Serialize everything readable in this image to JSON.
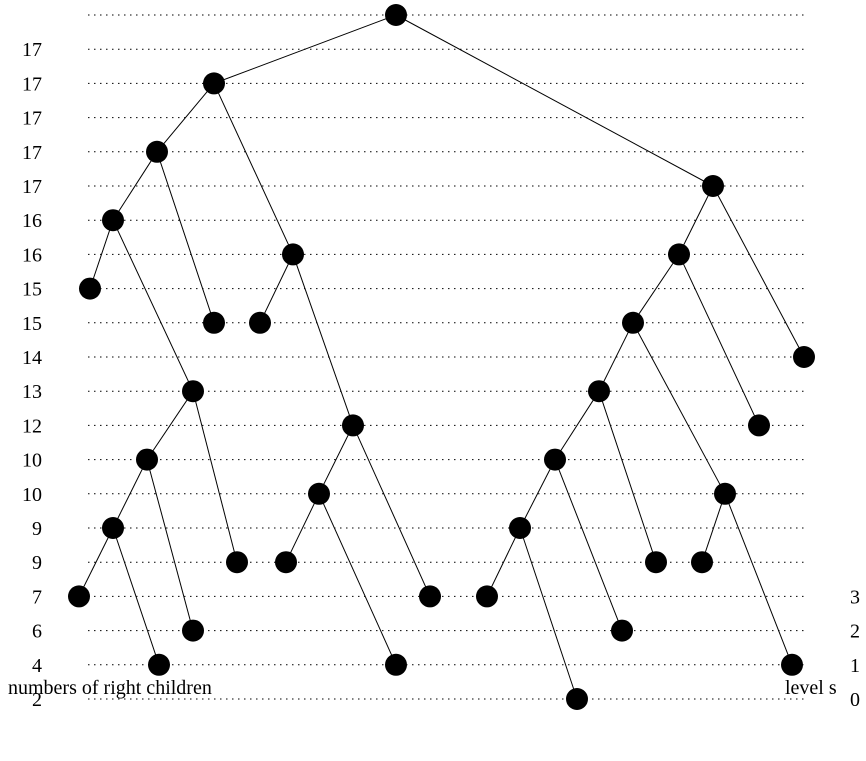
{
  "right_children_counts": [
    "17",
    "17",
    "17",
    "17",
    "17",
    "16",
    "16",
    "15",
    "15",
    "14",
    "13",
    "12",
    "10",
    "10",
    "9",
    "9",
    "7",
    "6",
    "4",
    "2"
  ],
  "level_labels": [
    "3",
    "2",
    "1",
    "0"
  ],
  "captions": {
    "left": "numbers of right children",
    "right": "level s"
  },
  "tree": {
    "nodes": [
      {
        "id": "r",
        "row": 0
      },
      {
        "id": "a",
        "row": 2
      },
      {
        "id": "b",
        "row": 4
      },
      {
        "id": "c",
        "row": 6
      },
      {
        "id": "d",
        "row": 8
      },
      {
        "id": "e",
        "row": 9
      },
      {
        "id": "f",
        "row": 9
      },
      {
        "id": "g",
        "row": 11
      },
      {
        "id": "h",
        "row": 13
      },
      {
        "id": "i",
        "row": 15
      },
      {
        "id": "j",
        "row": 17
      },
      {
        "id": "k",
        "row": 19
      },
      {
        "id": "l",
        "row": 18
      },
      {
        "id": "m",
        "row": 16
      },
      {
        "id": "n",
        "row": 7
      },
      {
        "id": "o",
        "row": 9
      },
      {
        "id": "p",
        "row": 12
      },
      {
        "id": "q",
        "row": 14
      },
      {
        "id": "s",
        "row": 16
      },
      {
        "id": "t",
        "row": 19
      },
      {
        "id": "u",
        "row": 17
      },
      {
        "id": "v",
        "row": 5
      },
      {
        "id": "w",
        "row": 7
      },
      {
        "id": "x",
        "row": 9
      },
      {
        "id": "y",
        "row": 11
      },
      {
        "id": "z",
        "row": 13
      },
      {
        "id": "aa",
        "row": 15
      },
      {
        "id": "ab",
        "row": 17
      },
      {
        "id": "ac",
        "row": 20
      },
      {
        "id": "ad",
        "row": 18
      },
      {
        "id": "ae",
        "row": 16
      },
      {
        "id": "af",
        "row": 14
      },
      {
        "id": "ag",
        "row": 16
      },
      {
        "id": "ah",
        "row": 19
      },
      {
        "id": "ai",
        "row": 12
      },
      {
        "id": "aj",
        "row": 10
      }
    ],
    "edges": [
      [
        "r",
        "a"
      ],
      [
        "r",
        "v"
      ],
      [
        "a",
        "b"
      ],
      [
        "a",
        "n"
      ],
      [
        "b",
        "c"
      ],
      [
        "b",
        "f"
      ],
      [
        "c",
        "d"
      ],
      [
        "c",
        "g"
      ],
      [
        "g",
        "h"
      ],
      [
        "g",
        "m"
      ],
      [
        "h",
        "i"
      ],
      [
        "h",
        "l"
      ],
      [
        "i",
        "j"
      ],
      [
        "i",
        "k"
      ],
      [
        "n",
        "o"
      ],
      [
        "n",
        "p"
      ],
      [
        "p",
        "q"
      ],
      [
        "p",
        "u"
      ],
      [
        "q",
        "s"
      ],
      [
        "q",
        "t"
      ],
      [
        "v",
        "w"
      ],
      [
        "v",
        "aj"
      ],
      [
        "w",
        "x"
      ],
      [
        "w",
        "ai"
      ],
      [
        "x",
        "y"
      ],
      [
        "x",
        "af"
      ],
      [
        "y",
        "z"
      ],
      [
        "y",
        "ae"
      ],
      [
        "z",
        "aa"
      ],
      [
        "z",
        "ad"
      ],
      [
        "aa",
        "ab"
      ],
      [
        "aa",
        "ac"
      ],
      [
        "af",
        "ag"
      ],
      [
        "af",
        "ah"
      ]
    ]
  }
}
